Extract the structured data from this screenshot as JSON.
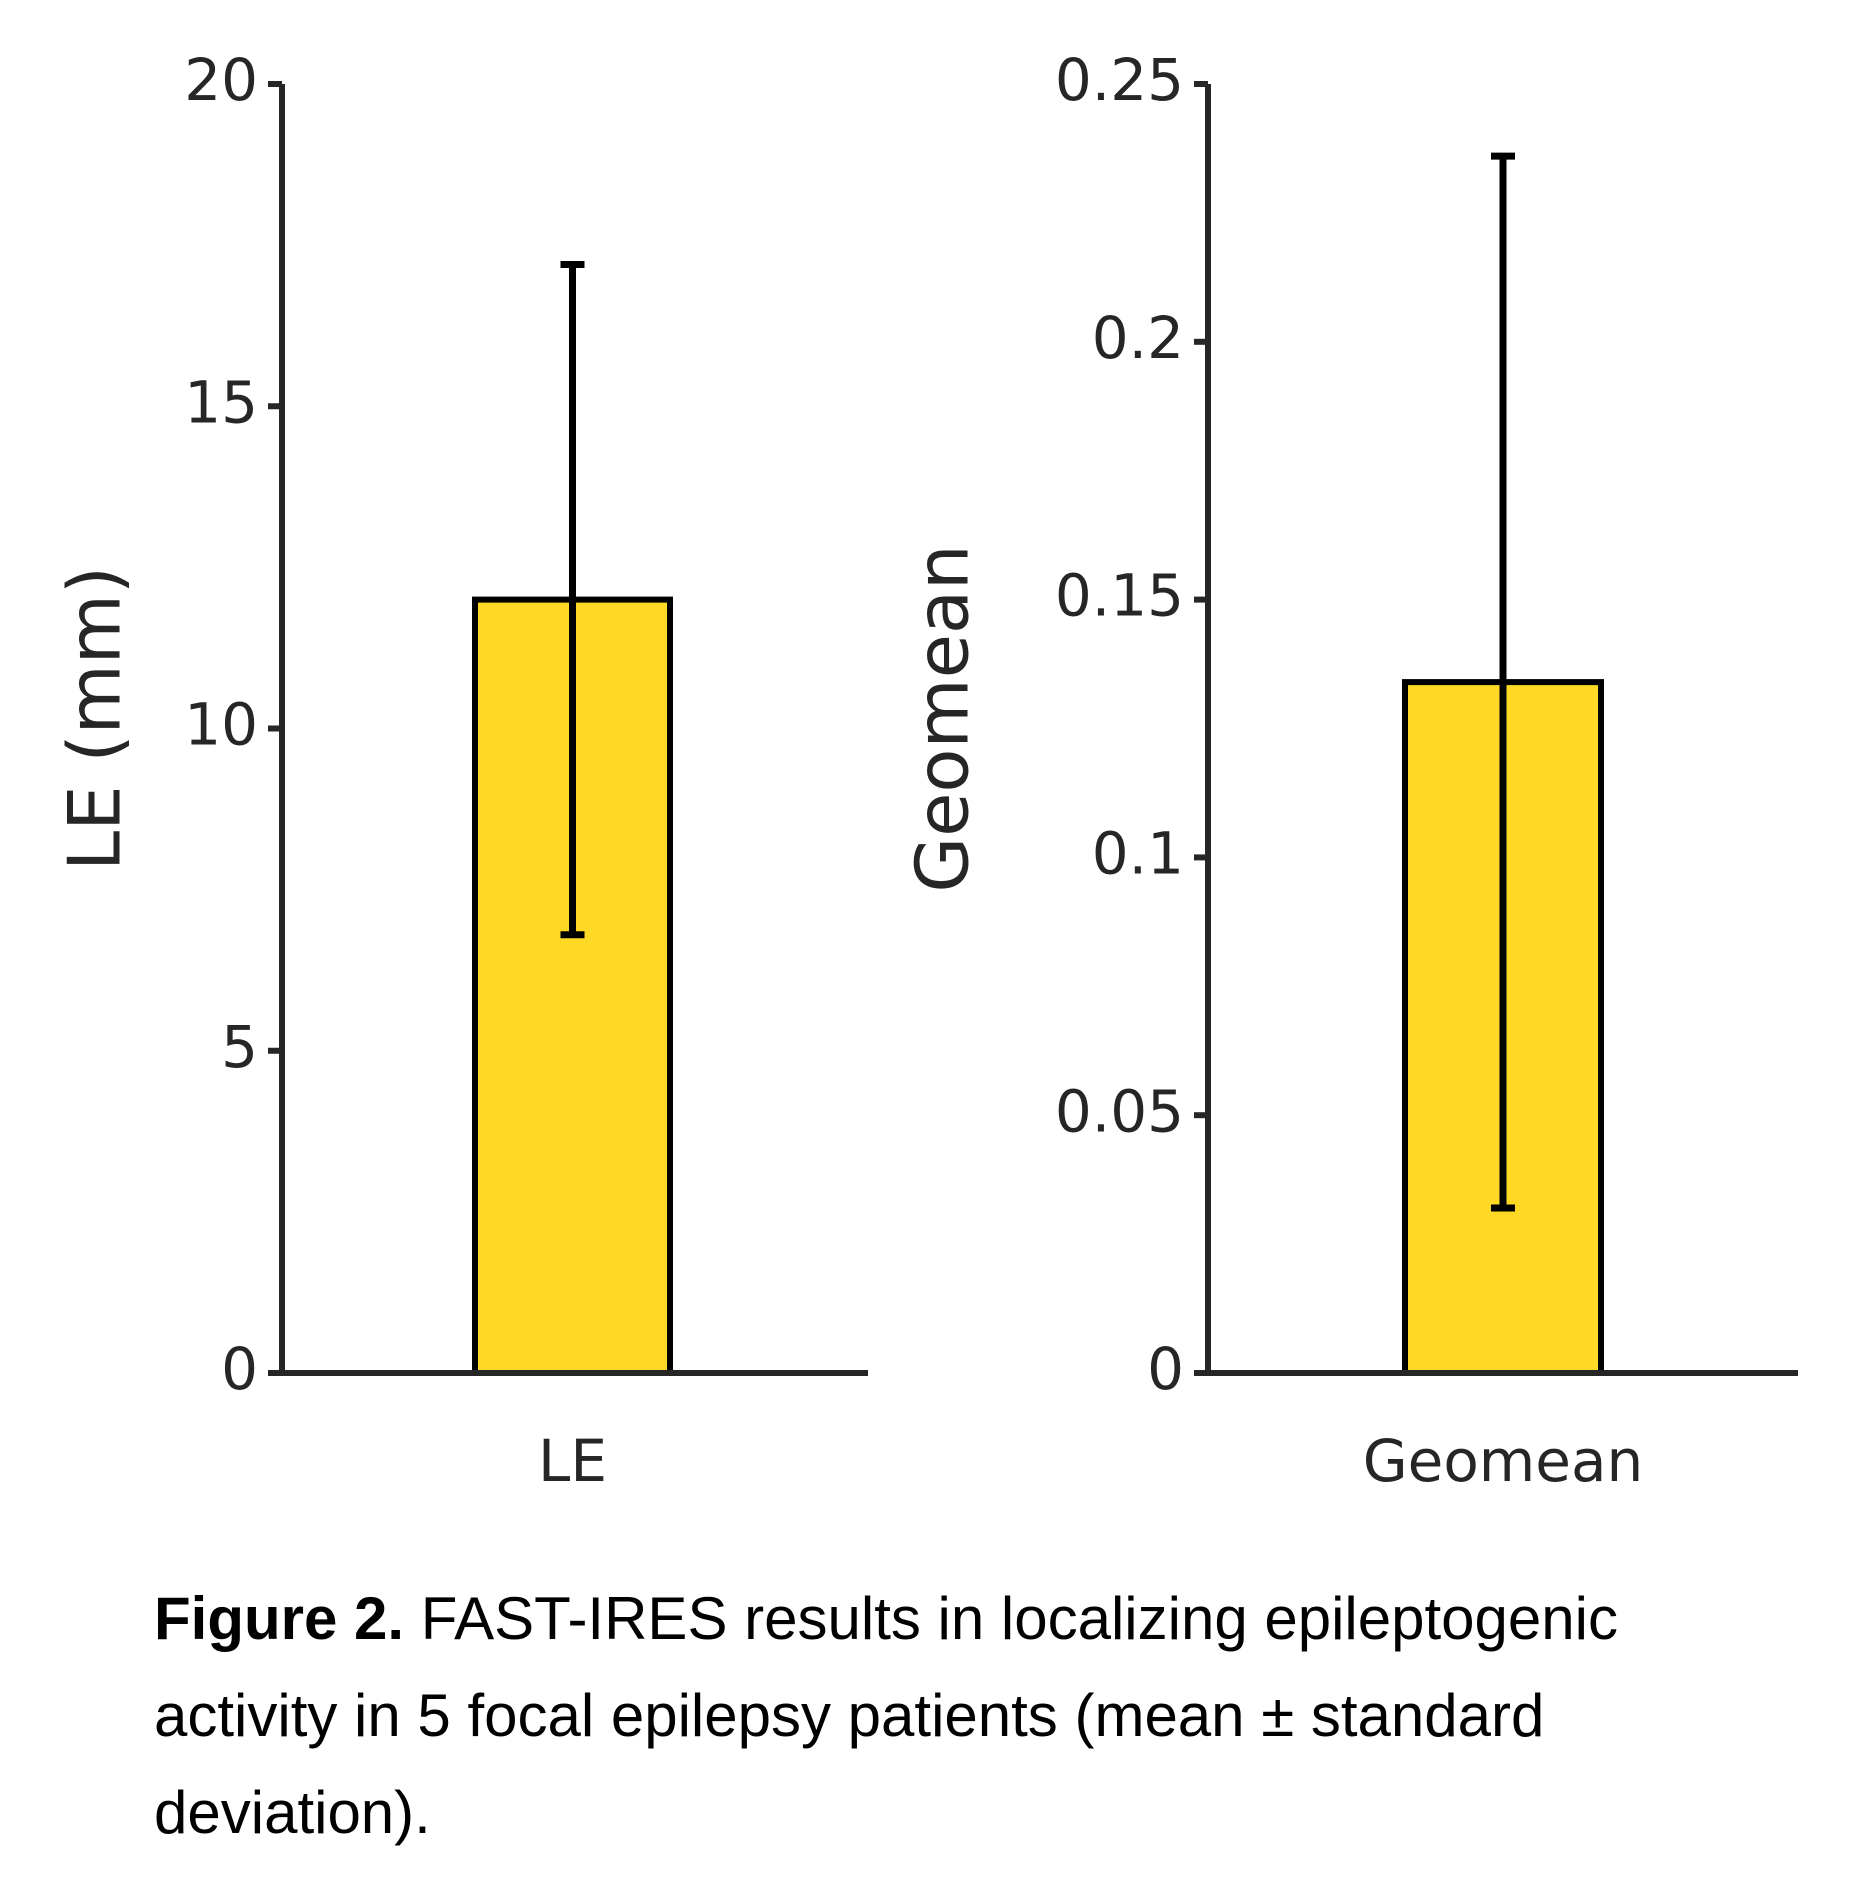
{
  "chart_data": [
    {
      "type": "bar",
      "ylabel": "LE (mm)",
      "categories": [
        "LE"
      ],
      "values": [
        12.0
      ],
      "errors": [
        5.2
      ],
      "color": "#fdd825",
      "ylim": [
        0,
        20
      ],
      "yticks": [
        0,
        5,
        10,
        15,
        20
      ]
    },
    {
      "type": "bar",
      "ylabel": "Geomean",
      "categories": [
        "Geomean"
      ],
      "values": [
        0.134
      ],
      "errors": [
        0.102
      ],
      "color": "#fdd825",
      "ylim": [
        0,
        0.25
      ],
      "yticks": [
        0,
        0.05,
        0.1,
        0.15,
        0.2,
        0.25
      ]
    }
  ],
  "caption": {
    "label": "Figure 2.",
    "text": "FAST-IRES results in localizing epileptogenic activity in 5 focal epilepsy patients (mean ± standard deviation)."
  }
}
